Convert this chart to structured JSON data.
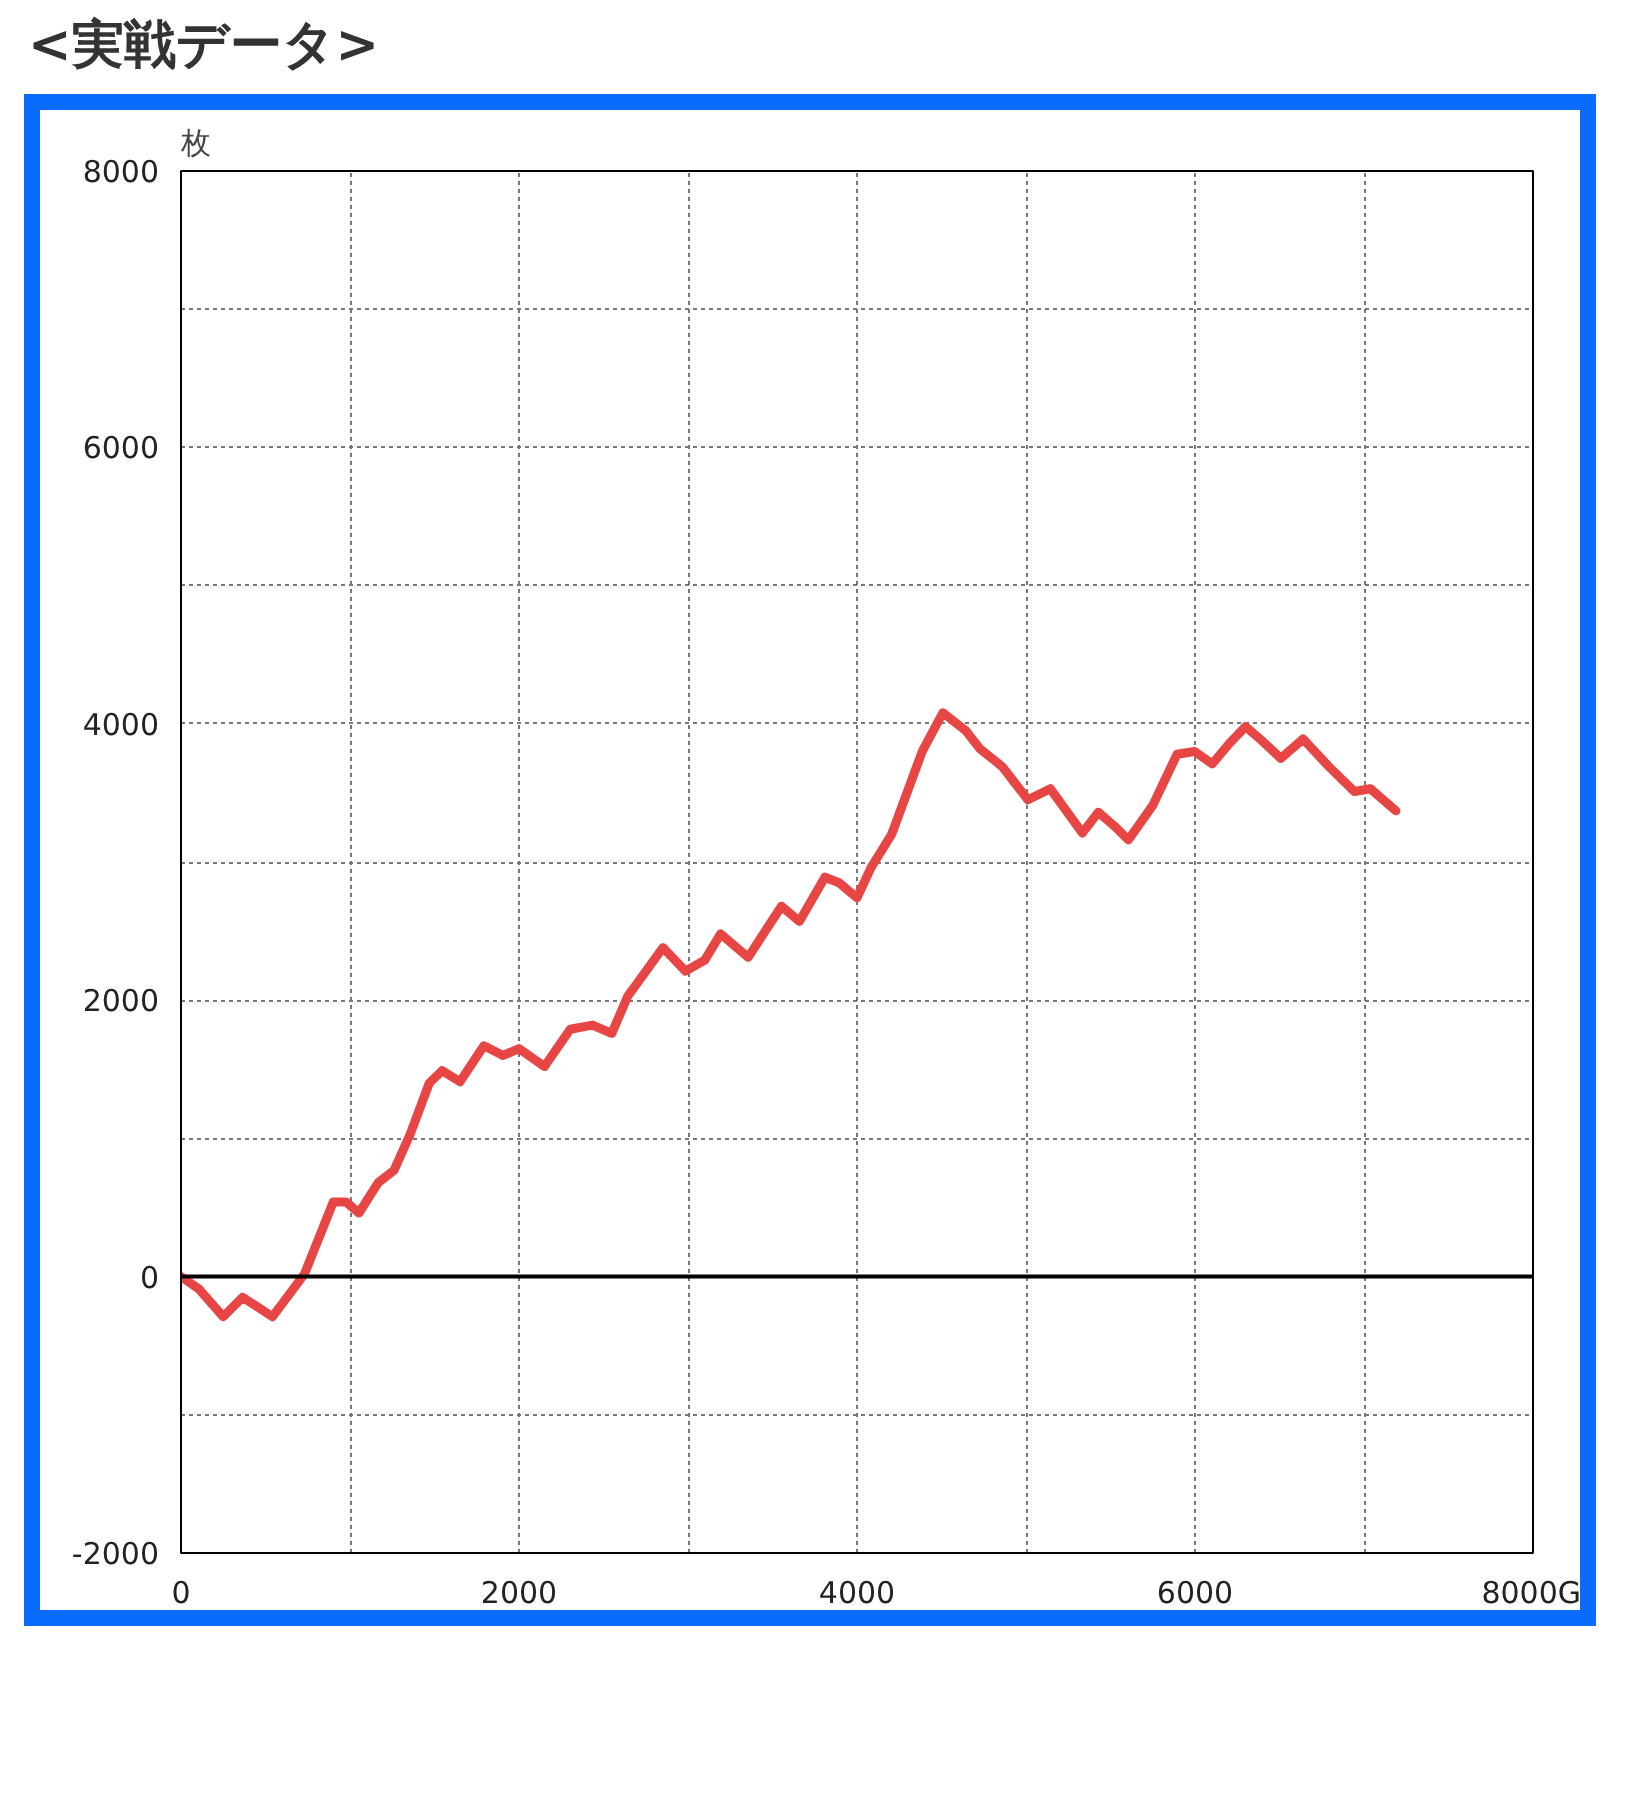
{
  "chart_data": {
    "type": "line",
    "title": "<実戦データ>",
    "ylabel": "枚",
    "x": [
      0,
      106,
      250,
      364,
      542,
      731,
      901,
      977,
      1053,
      1167,
      1261,
      1356,
      1469,
      1545,
      1651,
      1792,
      1906,
      2000,
      2151,
      2303,
      2435,
      2549,
      2644,
      2852,
      2985,
      3099,
      3193,
      3356,
      3553,
      3659,
      3810,
      3894,
      4000,
      4083,
      4205,
      4386,
      4508,
      4644,
      4727,
      4860,
      5011,
      5144,
      5333,
      5428,
      5523,
      5606,
      5750,
      5894,
      5997,
      6102,
      6205,
      6299,
      6394,
      6508,
      6640,
      6792,
      6943,
      7038,
      7189
    ],
    "series": [
      {
        "color": "#e84545",
        "values": [
          0,
          -90,
          -290,
          -150,
          -290,
          20,
          540,
          540,
          460,
          680,
          770,
          1030,
          1400,
          1490,
          1410,
          1670,
          1600,
          1650,
          1520,
          1790,
          1820,
          1760,
          2030,
          2380,
          2210,
          2290,
          2480,
          2310,
          2680,
          2570,
          2890,
          2850,
          2740,
          2960,
          3200,
          3800,
          4080,
          3950,
          3820,
          3690,
          3450,
          3530,
          3210,
          3360,
          3260,
          3160,
          3410,
          3780,
          3800,
          3710,
          3860,
          3980,
          3880,
          3750,
          3890,
          3690,
          3510,
          3530,
          3370
        ]
      }
    ],
    "xlim": [
      0,
      8000
    ],
    "ylim": [
      -2000,
      8000
    ],
    "xticks": [
      0,
      {
        "value": 1000,
        "label": null
      },
      2000,
      {
        "value": 3000,
        "label": null
      },
      4000,
      {
        "value": 5000,
        "label": null
      },
      6000,
      {
        "value": 7000,
        "label": null
      },
      {
        "value": 8000,
        "label": "8000G"
      }
    ],
    "yticks": [
      -2000,
      {
        "value": -1000,
        "label": null
      },
      0,
      {
        "value": 1000,
        "label": null
      },
      2000,
      {
        "value": 3000,
        "label": null
      },
      4000,
      {
        "value": 5000,
        "label": null
      },
      6000,
      {
        "value": 7000,
        "label": null
      },
      8000
    ],
    "ref_lines": [
      {
        "axis": "y",
        "value": 0,
        "color": "#000000"
      }
    ],
    "grid": true,
    "marker": "none",
    "line_style": "solid"
  }
}
